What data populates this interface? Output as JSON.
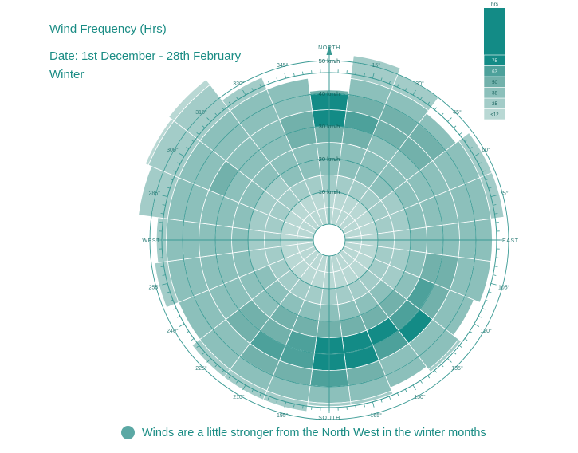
{
  "header": {
    "title": "Wind Frequency (Hrs)",
    "date_range": "Date: 1st December - 28th February",
    "season": "Winter"
  },
  "compass": {
    "north": "NORTH",
    "south": "SOUTH",
    "east": "EAST",
    "west": "WEST"
  },
  "footer": {
    "note": "Winds are a little stronger from the North West in the winter months"
  },
  "chart_data": {
    "type": "radial-heatmap",
    "title": "Wind Frequency (Hrs)",
    "radial_unit": "km/h",
    "radial_labels": [
      "10 km/h",
      "20 km/h",
      "30 km/h",
      "40 km/h",
      "50 km/h"
    ],
    "bin_width_deg": 15,
    "direction_labels": [
      "15°",
      "30°",
      "45°",
      "60°",
      "75°",
      "105°",
      "120°",
      "135°",
      "150°",
      "165°",
      "195°",
      "210°",
      "225°",
      "240°",
      "255°",
      "285°",
      "300°",
      "315°",
      "330°",
      "345°"
    ],
    "legend": {
      "title": "hrs",
      "levels": [
        "<12",
        "25",
        "38",
        "50",
        "63",
        "75"
      ]
    },
    "colors": [
      "#b9d8d4",
      "#a3ccc8",
      "#8cc0bb",
      "#72b1ab",
      "#4da19b",
      "#138b86"
    ],
    "directions": [
      0,
      15,
      30,
      45,
      60,
      75,
      90,
      105,
      120,
      135,
      150,
      165,
      180,
      195,
      210,
      225,
      240,
      255,
      270,
      285,
      300,
      315,
      330,
      345
    ],
    "max_speed_kmh": [
      41,
      52,
      50,
      44,
      49,
      49,
      45,
      45,
      43,
      46,
      44,
      46,
      46,
      48,
      48,
      48,
      45,
      49,
      48,
      54,
      56,
      57,
      49,
      45
    ],
    "level_matrix": [
      [
        0,
        0,
        1,
        2,
        2,
        3,
        5,
        5,
        3,
        2,
        1,
        0
      ],
      [
        0,
        0,
        1,
        2,
        2,
        3,
        4,
        3,
        2,
        1,
        1,
        0
      ],
      [
        0,
        0,
        1,
        2,
        2,
        2,
        3,
        3,
        2,
        1,
        1,
        0
      ],
      [
        0,
        0,
        1,
        2,
        2,
        2,
        3,
        3,
        2,
        1,
        1,
        0
      ],
      [
        0,
        0,
        1,
        1,
        2,
        2,
        2,
        2,
        2,
        1,
        1,
        0
      ],
      [
        0,
        0,
        1,
        1,
        2,
        2,
        2,
        2,
        2,
        1,
        1,
        0
      ],
      [
        0,
        0,
        1,
        1,
        2,
        2,
        2,
        2,
        2,
        1,
        1,
        0
      ],
      [
        0,
        0,
        1,
        1,
        2,
        3,
        3,
        2,
        2,
        1,
        1,
        0
      ],
      [
        0,
        0,
        1,
        1,
        2,
        4,
        3,
        2,
        2,
        1,
        1,
        0
      ],
      [
        0,
        0,
        1,
        2,
        3,
        4,
        5,
        2,
        2,
        1,
        1,
        0
      ],
      [
        0,
        0,
        1,
        2,
        3,
        5,
        4,
        2,
        2,
        1,
        1,
        0
      ],
      [
        0,
        0,
        1,
        2,
        3,
        5,
        5,
        3,
        2,
        1,
        1,
        0
      ],
      [
        0,
        0,
        1,
        2,
        3,
        5,
        5,
        4,
        2,
        1,
        1,
        0
      ],
      [
        0,
        0,
        1,
        2,
        3,
        4,
        4,
        3,
        2,
        1,
        1,
        0
      ],
      [
        0,
        0,
        1,
        2,
        3,
        3,
        4,
        3,
        2,
        1,
        1,
        0
      ],
      [
        0,
        0,
        1,
        2,
        2,
        3,
        3,
        2,
        2,
        1,
        1,
        0
      ],
      [
        0,
        0,
        1,
        2,
        2,
        2,
        2,
        2,
        2,
        1,
        1,
        0
      ],
      [
        0,
        0,
        1,
        1,
        2,
        2,
        2,
        2,
        2,
        1,
        1,
        0
      ],
      [
        0,
        0,
        1,
        1,
        2,
        2,
        2,
        2,
        2,
        1,
        1,
        0
      ],
      [
        0,
        0,
        1,
        1,
        2,
        2,
        2,
        2,
        2,
        1,
        1,
        0
      ],
      [
        0,
        0,
        1,
        1,
        2,
        2,
        3,
        2,
        2,
        1,
        1,
        0
      ],
      [
        0,
        0,
        1,
        1,
        2,
        2,
        2,
        2,
        2,
        1,
        1,
        0
      ],
      [
        0,
        0,
        1,
        2,
        2,
        2,
        2,
        2,
        2,
        1,
        1,
        0
      ],
      [
        0,
        0,
        1,
        2,
        2,
        3,
        3,
        2,
        2,
        1,
        1,
        0
      ]
    ]
  }
}
